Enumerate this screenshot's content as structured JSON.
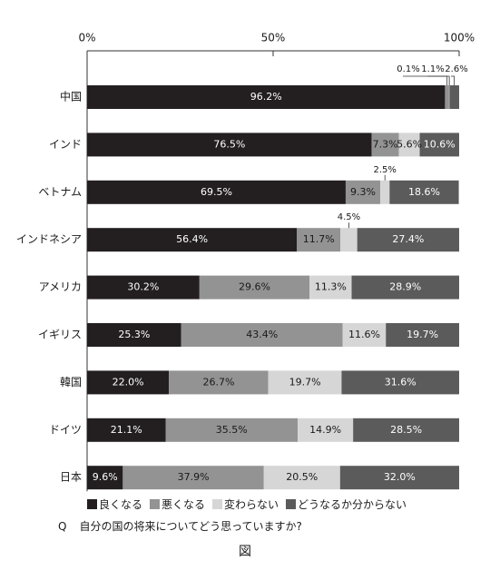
{
  "chart_data": {
    "type": "bar",
    "orientation": "horizontal-stacked-percent",
    "title": "",
    "xlabel": "",
    "ylabel": "",
    "xlim": [
      0,
      100
    ],
    "x_ticks": [
      "0%",
      "50%",
      "100%"
    ],
    "categories": [
      "中国",
      "インド",
      "ベトナム",
      "インドネシア",
      "アメリカ",
      "イギリス",
      "韓国",
      "ドイツ",
      "日本"
    ],
    "series": [
      {
        "name": "良くなる",
        "color": "#231f20",
        "values": [
          96.2,
          76.5,
          69.5,
          56.4,
          30.2,
          25.3,
          22.0,
          21.1,
          9.6
        ]
      },
      {
        "name": "悪くなる",
        "color": "#939393",
        "values": [
          1.1,
          7.3,
          9.3,
          11.7,
          29.6,
          43.4,
          26.7,
          35.5,
          37.9
        ]
      },
      {
        "name": "変わらない",
        "color": "#d6d6d6",
        "values": [
          0.1,
          5.6,
          2.5,
          4.5,
          11.3,
          11.6,
          19.7,
          14.9,
          20.5
        ]
      },
      {
        "name": "どうなるか分からない",
        "color": "#5b5b5b",
        "values": [
          2.6,
          10.6,
          18.6,
          27.4,
          28.9,
          19.7,
          31.6,
          28.5,
          32.0
        ]
      }
    ],
    "data_labels": [
      [
        "96.2%",
        "1.1%",
        "0.1%",
        "2.6%"
      ],
      [
        "76.5%",
        "7.3%",
        "5.6%",
        "10.6%"
      ],
      [
        "69.5%",
        "9.3%",
        "2.5%",
        "18.6%"
      ],
      [
        "56.4%",
        "11.7%",
        "4.5%",
        "27.4%"
      ],
      [
        "30.2%",
        "29.6%",
        "11.3%",
        "28.9%"
      ],
      [
        "25.3%",
        "43.4%",
        "11.6%",
        "19.7%"
      ],
      [
        "22.0%",
        "26.7%",
        "19.7%",
        "31.6%"
      ],
      [
        "21.1%",
        "35.5%",
        "14.9%",
        "28.5%"
      ],
      [
        "9.6%",
        "37.9%",
        "20.5%",
        "32.0%"
      ]
    ],
    "legend_position": "bottom-left",
    "grid": false
  },
  "caption": {
    "q_mark": "Q",
    "question": "自分の国の将来についてどう思っていますか?",
    "figure_label": "図"
  }
}
